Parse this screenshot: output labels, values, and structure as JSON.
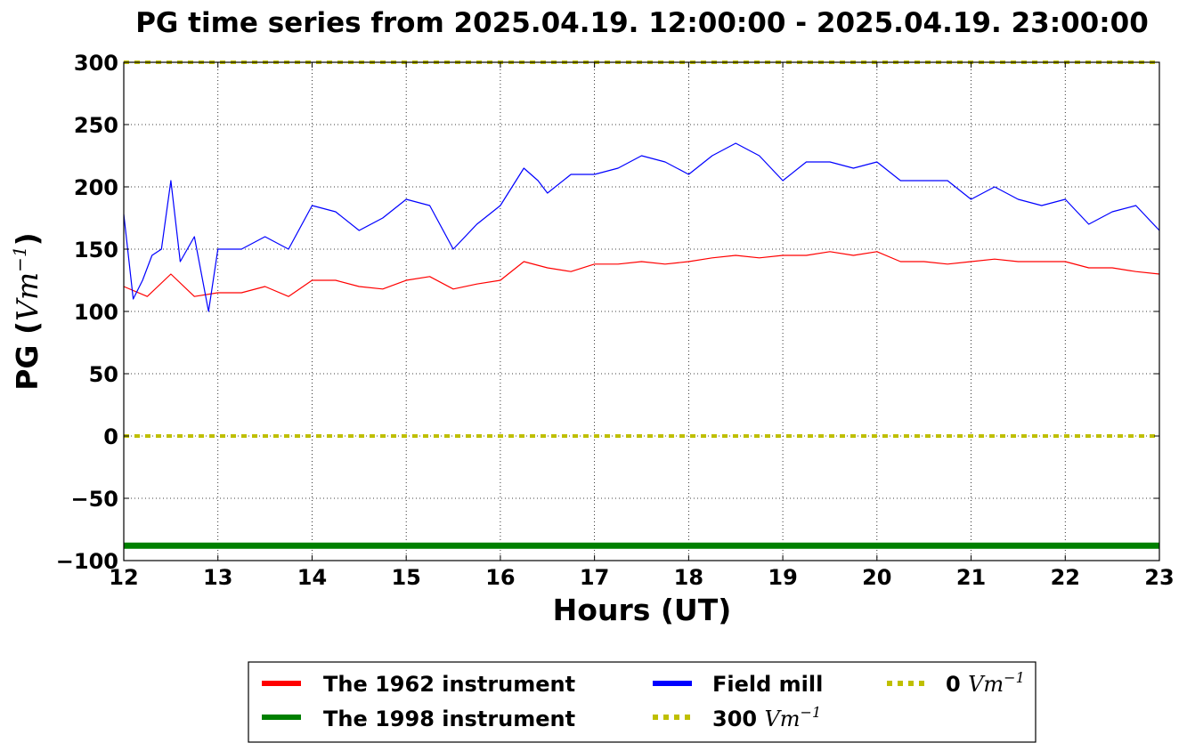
{
  "chart_data": {
    "type": "line",
    "title": "PG time series from 2025.04.19. 12:00:00 - 2025.04.19. 23:00:00",
    "xlabel": "Hours (UT)",
    "ylabel": "PG (",
    "ylabel_unit": "Vm",
    "ylabel_exp": "−1",
    "ylabel_close": ")",
    "xlim": [
      12,
      23
    ],
    "ylim": [
      -100,
      300
    ],
    "x_ticks": [
      12,
      13,
      14,
      15,
      16,
      17,
      18,
      19,
      20,
      21,
      22,
      23
    ],
    "y_ticks": [
      -100,
      -50,
      0,
      50,
      100,
      150,
      200,
      250,
      300
    ],
    "x_tick_labels": [
      "12",
      "13",
      "14",
      "15",
      "16",
      "17",
      "18",
      "19",
      "20",
      "21",
      "22",
      "23"
    ],
    "y_tick_labels": [
      "−100",
      "−50",
      "0",
      "50",
      "100",
      "150",
      "200",
      "250",
      "300"
    ],
    "grid": true,
    "legend_placement": "bottom-center, below plot",
    "series": [
      {
        "name": "The 1962 instrument",
        "color": "#ff0000",
        "style": "solid",
        "x": [
          12.0,
          12.25,
          12.5,
          12.75,
          13.0,
          13.25,
          13.5,
          13.75,
          14.0,
          14.25,
          14.5,
          14.75,
          15.0,
          15.25,
          15.5,
          15.75,
          16.0,
          16.25,
          16.5,
          16.75,
          17.0,
          17.25,
          17.5,
          17.75,
          18.0,
          18.25,
          18.5,
          18.75,
          19.0,
          19.25,
          19.5,
          19.75,
          20.0,
          20.25,
          20.5,
          20.75,
          21.0,
          21.25,
          21.5,
          21.75,
          22.0,
          22.25,
          22.5,
          22.75,
          23.0
        ],
        "values": [
          120,
          112,
          130,
          112,
          115,
          115,
          120,
          112,
          125,
          125,
          120,
          118,
          125,
          128,
          118,
          122,
          125,
          140,
          135,
          132,
          138,
          138,
          140,
          138,
          140,
          143,
          145,
          143,
          145,
          145,
          148,
          145,
          148,
          140,
          140,
          138,
          140,
          142,
          140,
          140,
          140,
          135,
          135,
          132,
          130
        ]
      },
      {
        "name": "The 1998 instrument",
        "color": "#008000",
        "style": "solid",
        "x": [
          12,
          23
        ],
        "values": [
          -88,
          -88
        ]
      },
      {
        "name": "Field mill",
        "color": "#0000ff",
        "style": "solid",
        "x": [
          12.0,
          12.1,
          12.2,
          12.3,
          12.4,
          12.5,
          12.6,
          12.75,
          12.9,
          13.0,
          13.25,
          13.5,
          13.75,
          14.0,
          14.25,
          14.5,
          14.75,
          15.0,
          15.25,
          15.5,
          15.75,
          16.0,
          16.25,
          16.4,
          16.5,
          16.75,
          17.0,
          17.25,
          17.5,
          17.75,
          18.0,
          18.25,
          18.5,
          18.75,
          19.0,
          19.25,
          19.5,
          19.75,
          20.0,
          20.25,
          20.5,
          20.75,
          21.0,
          21.25,
          21.5,
          21.75,
          22.0,
          22.25,
          22.5,
          22.75,
          23.0
        ],
        "values": [
          178,
          110,
          125,
          145,
          150,
          205,
          140,
          160,
          100,
          150,
          150,
          160,
          150,
          185,
          180,
          165,
          175,
          190,
          185,
          150,
          170,
          185,
          215,
          205,
          195,
          210,
          210,
          215,
          225,
          220,
          210,
          225,
          235,
          225,
          205,
          220,
          220,
          215,
          220,
          205,
          205,
          205,
          190,
          200,
          190,
          185,
          190,
          170,
          180,
          185,
          165
        ]
      },
      {
        "name": "300 Vm⁻¹",
        "label_num": "300 ",
        "label_unit": "Vm",
        "label_exp": "−1",
        "color": "#bfbf00",
        "style": "dotted",
        "x": [
          12,
          23
        ],
        "values": [
          300,
          300
        ]
      },
      {
        "name": "0 Vm⁻¹",
        "label_num": "0 ",
        "label_unit": "Vm",
        "label_exp": "−1",
        "color": "#bfbf00",
        "style": "dotted",
        "x": [
          12,
          23
        ],
        "values": [
          0,
          0
        ]
      }
    ]
  }
}
